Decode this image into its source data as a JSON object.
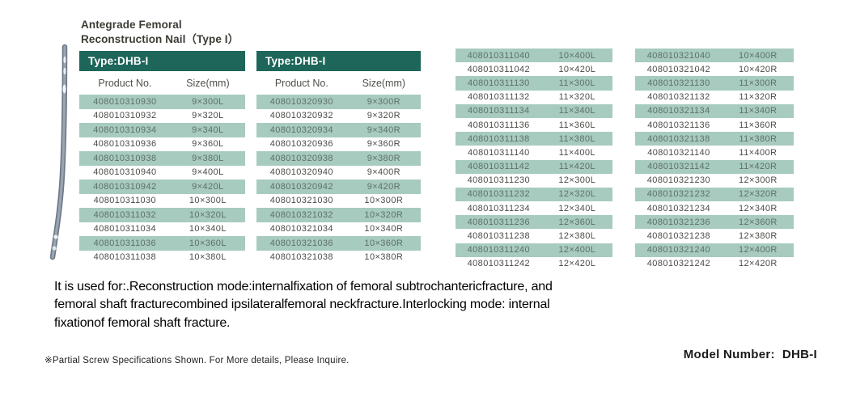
{
  "title": {
    "line1": "Antegrade Femoral",
    "line2": "Reconstruction Nail（Type I）"
  },
  "illustration": {
    "name": "femoral-nail-side-view"
  },
  "tables": [
    {
      "type_label": "Type:DHB-I",
      "columns": {
        "product": "Product No.",
        "size": "Size(mm)"
      },
      "rows": [
        [
          "408010310930",
          "9×300L"
        ],
        [
          "408010310932",
          "9×320L"
        ],
        [
          "408010310934",
          "9×340L"
        ],
        [
          "408010310936",
          "9×360L"
        ],
        [
          "408010310938",
          "9×380L"
        ],
        [
          "408010310940",
          "9×400L"
        ],
        [
          "408010310942",
          "9×420L"
        ],
        [
          "408010311030",
          "10×300L"
        ],
        [
          "408010311032",
          "10×320L"
        ],
        [
          "408010311034",
          "10×340L"
        ],
        [
          "408010311036",
          "10×360L"
        ],
        [
          "408010311038",
          "10×380L"
        ]
      ]
    },
    {
      "type_label": "Type:DHB-I",
      "columns": {
        "product": "Product No.",
        "size": "Size(mm)"
      },
      "rows": [
        [
          "408010320930",
          "9×300R"
        ],
        [
          "408010320932",
          "9×320R"
        ],
        [
          "408010320934",
          "9×340R"
        ],
        [
          "408010320936",
          "9×360R"
        ],
        [
          "408010320938",
          "9×380R"
        ],
        [
          "408010320940",
          "9×400R"
        ],
        [
          "408010320942",
          "9×420R"
        ],
        [
          "408010321030",
          "10×300R"
        ],
        [
          "408010321032",
          "10×320R"
        ],
        [
          "408010321034",
          "10×340R"
        ],
        [
          "408010321036",
          "10×360R"
        ],
        [
          "408010321038",
          "10×380R"
        ]
      ]
    },
    {
      "rows": [
        [
          "408010311040",
          "10×400L"
        ],
        [
          "408010311042",
          "10×420L"
        ],
        [
          "408010311130",
          "11×300L"
        ],
        [
          "408010311132",
          "11×320L"
        ],
        [
          "408010311134",
          "11×340L"
        ],
        [
          "408010311136",
          "11×360L"
        ],
        [
          "408010311138",
          "11×380L"
        ],
        [
          "408010311140",
          "11×400L"
        ],
        [
          "408010311142",
          "11×420L"
        ],
        [
          "408010311230",
          "12×300L"
        ],
        [
          "408010311232",
          "12×320L"
        ],
        [
          "408010311234",
          "12×340L"
        ],
        [
          "408010311236",
          "12×360L"
        ],
        [
          "408010311238",
          "12×380L"
        ],
        [
          "408010311240",
          "12×400L"
        ],
        [
          "408010311242",
          "12×420L"
        ]
      ]
    },
    {
      "rows": [
        [
          "408010321040",
          "10×400R"
        ],
        [
          "408010321042",
          "10×420R"
        ],
        [
          "408010321130",
          "11×300R"
        ],
        [
          "408010321132",
          "11×320R"
        ],
        [
          "408010321134",
          "11×340R"
        ],
        [
          "408010321136",
          "11×360R"
        ],
        [
          "408010321138",
          "11×380R"
        ],
        [
          "408010321140",
          "11×400R"
        ],
        [
          "408010321142",
          "11×420R"
        ],
        [
          "408010321230",
          "12×300R"
        ],
        [
          "408010321232",
          "12×320R"
        ],
        [
          "408010321234",
          "12×340R"
        ],
        [
          "408010321236",
          "12×360R"
        ],
        [
          "408010321238",
          "12×380R"
        ],
        [
          "408010321240",
          "12×400R"
        ],
        [
          "408010321242",
          "12×420R"
        ]
      ]
    }
  ],
  "description": {
    "lines": [
      "It is used for:.Reconstruction mode:internalfixation of femoral subtrochantericfracture, and",
      "femoral shaft fracturecombined ipsilateralfemoral neckfracture.Interlocking mode: internal",
      "fixationof femoral shaft fracture."
    ]
  },
  "footer": {
    "note": "※Partial Screw Specifications Shown. For More  details, Please Inquire.",
    "model_label": "Model Number:",
    "model_value": "DHB-I"
  },
  "colors": {
    "header_bg": "#1e6659",
    "highlight_row": "#a7cbbf",
    "row_text": "#4b4b48",
    "highlight_row_text": "#5f7068"
  }
}
